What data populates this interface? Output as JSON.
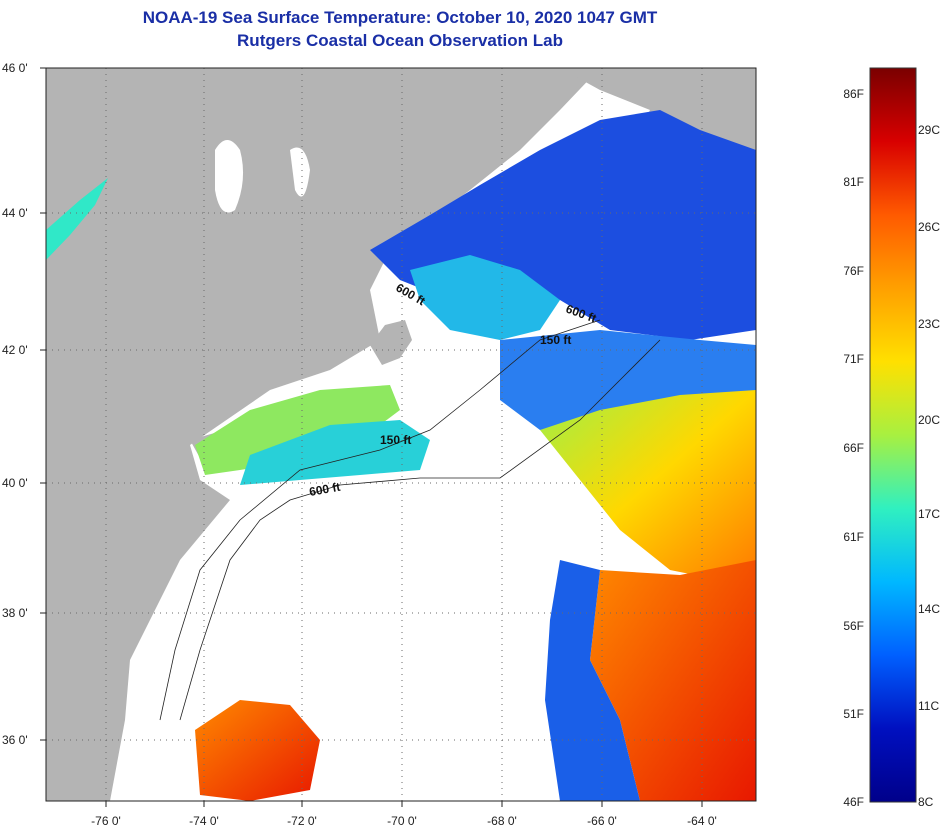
{
  "header": {
    "title": "NOAA-19 Sea Surface Temperature:  October 10, 2020 1047 GMT",
    "subtitle": "Rutgers Coastal Ocean Observation Lab"
  },
  "map": {
    "lat_labels": [
      "46 0'",
      "44 0'",
      "42 0'",
      "40 0'",
      "38 0'",
      "36 0'"
    ],
    "lon_labels": [
      "-76 0'",
      "-74 0'",
      "-72 0'",
      "-70 0'",
      "-68 0'",
      "-66 0'",
      "-64 0'"
    ],
    "lat_range": [
      35,
      46
    ],
    "lon_range": [
      -77,
      -63
    ],
    "contour_labels": [
      "600 ft",
      "600 ft",
      "150 ft",
      "150 ft",
      "600 ft"
    ],
    "land_color": "#b4b4b4",
    "cloud_color": "#ffffff"
  },
  "colorbar": {
    "fahrenheit_labels": [
      "86F",
      "81F",
      "76F",
      "71F",
      "66F",
      "61F",
      "56F",
      "51F",
      "46F"
    ],
    "celsius_labels": [
      "29C",
      "26C",
      "23C",
      "20C",
      "17C",
      "14C",
      "11C",
      "8C"
    ],
    "colors": [
      "#7a0000",
      "#d80000",
      "#ff5a00",
      "#ffa000",
      "#ffe000",
      "#a8f040",
      "#30f0c0",
      "#00b8ff",
      "#0060ff",
      "#0010c0",
      "#00008a"
    ]
  }
}
